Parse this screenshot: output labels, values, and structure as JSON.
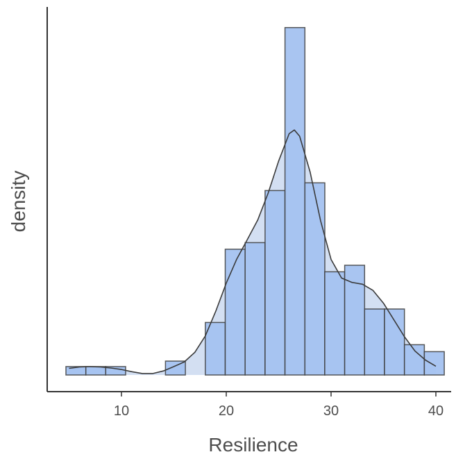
{
  "chart_data": {
    "type": "histogram",
    "xlabel": "Resilience",
    "ylabel": "density",
    "xlim": [
      4,
      41
    ],
    "ylim": [
      0,
      0.1
    ],
    "x_ticks": [
      10,
      20,
      30,
      40
    ],
    "bin_width": 1.9,
    "bins": [
      {
        "start": 4.7,
        "end": 6.6,
        "density": 0.0023
      },
      {
        "start": 6.6,
        "end": 8.5,
        "density": 0.0023
      },
      {
        "start": 8.5,
        "end": 10.4,
        "density": 0.0023
      },
      {
        "start": 10.4,
        "end": 12.3,
        "density": 0
      },
      {
        "start": 12.3,
        "end": 14.2,
        "density": 0
      },
      {
        "start": 14.2,
        "end": 16.1,
        "density": 0.0038
      },
      {
        "start": 16.1,
        "end": 18.0,
        "density": 0
      },
      {
        "start": 18.0,
        "end": 19.9,
        "density": 0.0144
      },
      {
        "start": 19.9,
        "end": 21.8,
        "density": 0.0345
      },
      {
        "start": 21.8,
        "end": 23.7,
        "density": 0.0363
      },
      {
        "start": 23.7,
        "end": 25.6,
        "density": 0.0506
      },
      {
        "start": 25.6,
        "end": 27.5,
        "density": 0.0953
      },
      {
        "start": 27.5,
        "end": 29.4,
        "density": 0.0527
      },
      {
        "start": 29.4,
        "end": 31.3,
        "density": 0.0283
      },
      {
        "start": 31.3,
        "end": 33.2,
        "density": 0.0301
      },
      {
        "start": 33.2,
        "end": 35.1,
        "density": 0.0181
      },
      {
        "start": 35.1,
        "end": 37.0,
        "density": 0.0181
      },
      {
        "start": 37.0,
        "end": 38.9,
        "density": 0.0083
      },
      {
        "start": 38.9,
        "end": 40.8,
        "density": 0.0064
      }
    ],
    "density_curve": {
      "x": [
        5,
        6,
        7,
        8,
        9,
        10,
        11,
        12,
        13,
        14,
        15,
        16,
        17,
        18,
        19,
        20,
        21,
        22,
        23,
        24,
        25,
        26,
        26.5,
        27,
        28,
        29,
        30,
        31,
        32,
        33,
        34,
        35,
        36,
        37,
        38,
        39,
        40
      ],
      "y": [
        0.0018,
        0.0022,
        0.0023,
        0.0022,
        0.0019,
        0.0015,
        0.0009,
        0.0004,
        0.0004,
        0.0011,
        0.0023,
        0.0036,
        0.0062,
        0.0107,
        0.0175,
        0.0252,
        0.0318,
        0.0371,
        0.0425,
        0.0499,
        0.0587,
        0.0662,
        0.0672,
        0.0655,
        0.0557,
        0.0423,
        0.0317,
        0.0266,
        0.0254,
        0.0249,
        0.0232,
        0.0197,
        0.0151,
        0.0105,
        0.0066,
        0.0041,
        0.0024
      ]
    },
    "colors": {
      "bar_fill": "#a4c2f0",
      "bar_stroke": "#3c3c3c",
      "curve_fill": "#d3dff2",
      "curve_stroke": "#3a3a3a",
      "axis": "#333333",
      "text": "#4d4d4d"
    },
    "grid": false,
    "legend": "none"
  }
}
